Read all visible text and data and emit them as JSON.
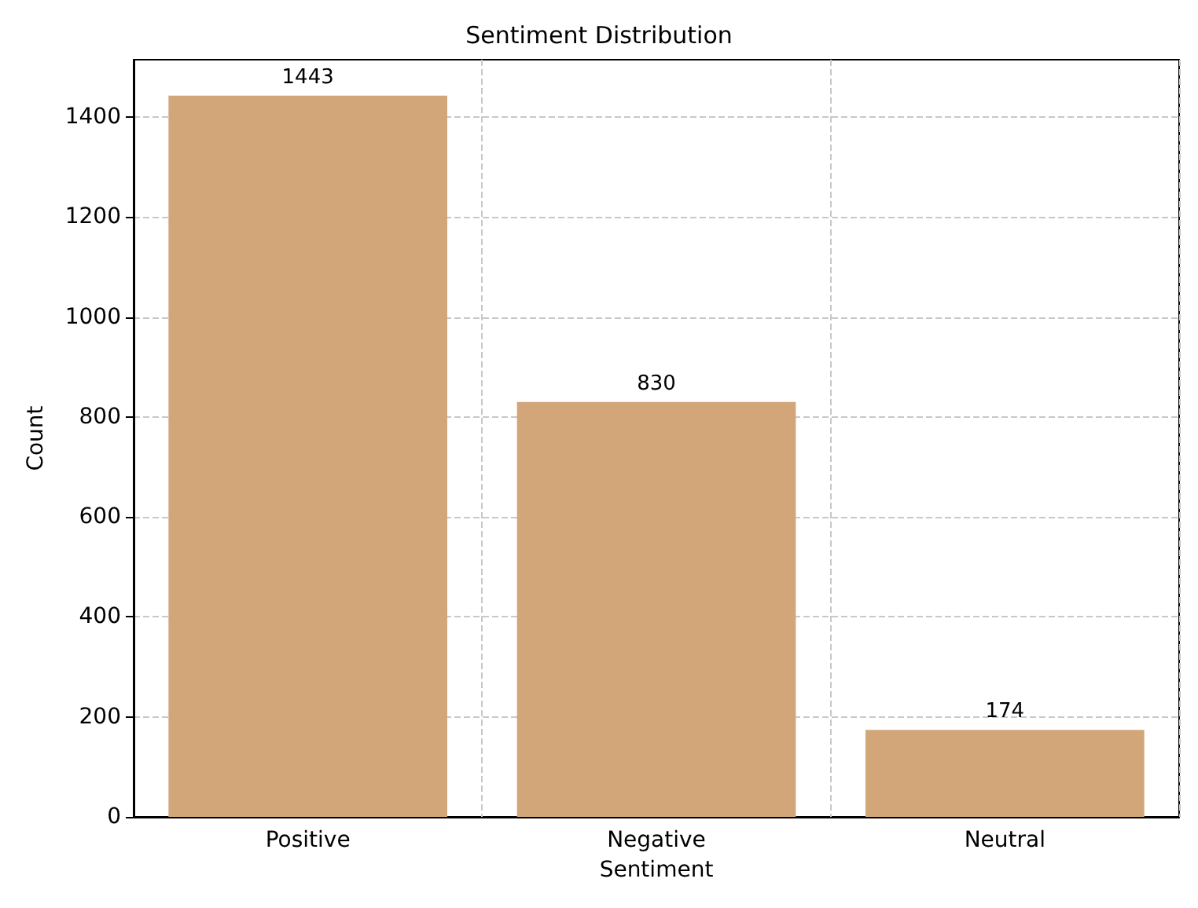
{
  "chart_data": {
    "type": "bar",
    "title": "Sentiment Distribution",
    "xlabel": "Sentiment",
    "ylabel": "Count",
    "categories": [
      "Positive",
      "Negative",
      "Neutral"
    ],
    "values": [
      1443,
      830,
      174
    ],
    "color": "#d2a679",
    "ylim": [
      0,
      1515
    ],
    "yticks": [
      0,
      200,
      400,
      600,
      800,
      1000,
      1200,
      1400
    ],
    "grid": true,
    "data_labels": true
  }
}
